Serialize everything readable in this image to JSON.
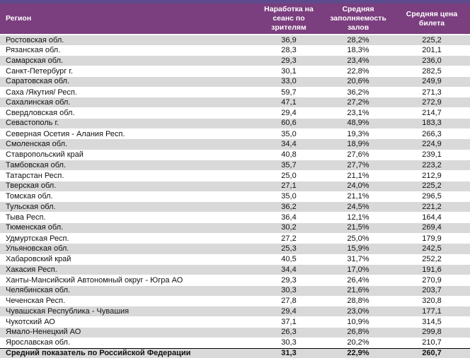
{
  "table": {
    "columns": [
      "Регион",
      "Наработка на сеанс по зрителям",
      "Средняя заполняемость залов",
      "Средняя цена билета"
    ],
    "rows": [
      [
        "Ростовская обл.",
        "36,9",
        "28,2%",
        "225,2"
      ],
      [
        "Рязанская обл.",
        "28,3",
        "18,3%",
        "201,1"
      ],
      [
        "Самарская обл.",
        "29,3",
        "23,4%",
        "236,0"
      ],
      [
        "Санкт-Петербург г.",
        "30,1",
        "22,8%",
        "282,5"
      ],
      [
        "Саратовская обл.",
        "33,0",
        "20,6%",
        "249,9"
      ],
      [
        "Саха /Якутия/ Респ.",
        "59,7",
        "36,2%",
        "271,3"
      ],
      [
        "Сахалинская обл.",
        "47,1",
        "27,2%",
        "272,9"
      ],
      [
        "Свердловская обл.",
        "29,4",
        "23,1%",
        "214,7"
      ],
      [
        "Севастополь г.",
        "60,6",
        "48,9%",
        "183,3"
      ],
      [
        "Северная Осетия - Алания Респ.",
        "35,0",
        "19,3%",
        "266,3"
      ],
      [
        "Смоленская обл.",
        "34,4",
        "18,9%",
        "224,9"
      ],
      [
        "Ставропольский край",
        "40,8",
        "27,6%",
        "239,1"
      ],
      [
        "Тамбовская обл.",
        "35,7",
        "27,7%",
        "223,2"
      ],
      [
        "Татарстан Респ.",
        "25,0",
        "21,1%",
        "212,9"
      ],
      [
        "Тверская обл.",
        "27,1",
        "24,0%",
        "225,2"
      ],
      [
        "Томская обл.",
        "35,0",
        "21,1%",
        "296,5"
      ],
      [
        "Тульская обл.",
        "36,2",
        "24,5%",
        "221,2"
      ],
      [
        "Тыва Респ.",
        "36,4",
        "12,1%",
        "164,4"
      ],
      [
        "Тюменская обл.",
        "30,2",
        "21,5%",
        "269,4"
      ],
      [
        "Удмуртская Респ.",
        "27,2",
        "25,0%",
        "179,9"
      ],
      [
        "Ульяновская обл.",
        "25,3",
        "15,9%",
        "242,5"
      ],
      [
        "Хабаровский край",
        "40,5",
        "31,7%",
        "252,2"
      ],
      [
        "Хакасия Респ.",
        "34,4",
        "17,0%",
        "191,6"
      ],
      [
        "Ханты-Мансийский Автономный округ - Югра АО",
        "29,3",
        "26,4%",
        "270,9"
      ],
      [
        "Челябинская обл.",
        "30,3",
        "21,6%",
        "203,7"
      ],
      [
        "Чеченская Респ.",
        "27,8",
        "28,8%",
        "320,8"
      ],
      [
        "Чувашская Республика - Чувашия",
        "29,4",
        "23,0%",
        "177,1"
      ],
      [
        "Чукотский АО",
        "37,1",
        "10,9%",
        "314,5"
      ],
      [
        "Ямало-Ненецкий АО",
        "26,3",
        "26,8%",
        "299,8"
      ],
      [
        "Ярославская обл.",
        "30,3",
        "20,2%",
        "210,7"
      ]
    ],
    "summary": [
      "Средний показатель по Российской Федерации",
      "31,3",
      "22,9%",
      "260,7"
    ]
  },
  "colors": {
    "top_strip": "#5e4b8d",
    "header_background": "#7b3e7e",
    "header_text": "#ffffff",
    "row_stripe": "#d9d9d9",
    "row_plain": "#ffffff",
    "text": "#111111",
    "summary_border": "#000000"
  }
}
